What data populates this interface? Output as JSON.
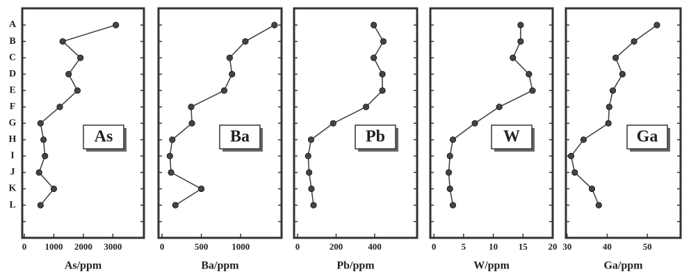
{
  "chart_data": [
    {
      "type": "line",
      "annotation": "As",
      "x_label": "As/ppm",
      "categories": [
        "A",
        "B",
        "C",
        "D",
        "E",
        "F",
        "G",
        "H",
        "I",
        "J",
        "K",
        "L"
      ],
      "values": [
        3100,
        1300,
        1900,
        1500,
        1800,
        1200,
        550,
        650,
        700,
        500,
        1000,
        550
      ],
      "xlim": [
        -70,
        4050
      ],
      "xticks": [
        0,
        1000,
        2000,
        3000
      ],
      "color": "#444444"
    },
    {
      "type": "line",
      "annotation": "Ba",
      "x_label": "Ba/ppm",
      "values": [
        1430,
        1060,
        860,
        890,
        790,
        370,
        380,
        130,
        100,
        115,
        500,
        170
      ],
      "xlim": [
        -45,
        1520
      ],
      "xticks": [
        0,
        500,
        1000
      ],
      "color": "#444444"
    },
    {
      "type": "line",
      "annotation": "Pb",
      "x_label": "Pb/ppm",
      "values": [
        395,
        445,
        395,
        440,
        440,
        355,
        185,
        70,
        55,
        60,
        72,
        83
      ],
      "xlim": [
        -18,
        620
      ],
      "xticks": [
        0,
        200,
        400
      ],
      "color": "#444444"
    },
    {
      "type": "line",
      "annotation": "W",
      "x_label": "W/ppm",
      "values": [
        14.6,
        14.6,
        13.3,
        16.0,
        16.6,
        11.0,
        6.9,
        3.2,
        2.7,
        2.5,
        2.7,
        3.2
      ],
      "xlim": [
        -0.6,
        20
      ],
      "xticks": [
        0,
        5,
        10,
        15,
        20
      ],
      "color": "#444444"
    },
    {
      "type": "line",
      "annotation": "Ga",
      "x_label": "Ga/ppm",
      "values": [
        52.4,
        46.7,
        42.1,
        43.8,
        41.4,
        40.5,
        40.3,
        34.1,
        31.0,
        31.9,
        36.2,
        37.9
      ],
      "xlim": [
        29.7,
        58.3
      ],
      "xticks": [
        30,
        40,
        50
      ],
      "color": "#444444"
    }
  ]
}
